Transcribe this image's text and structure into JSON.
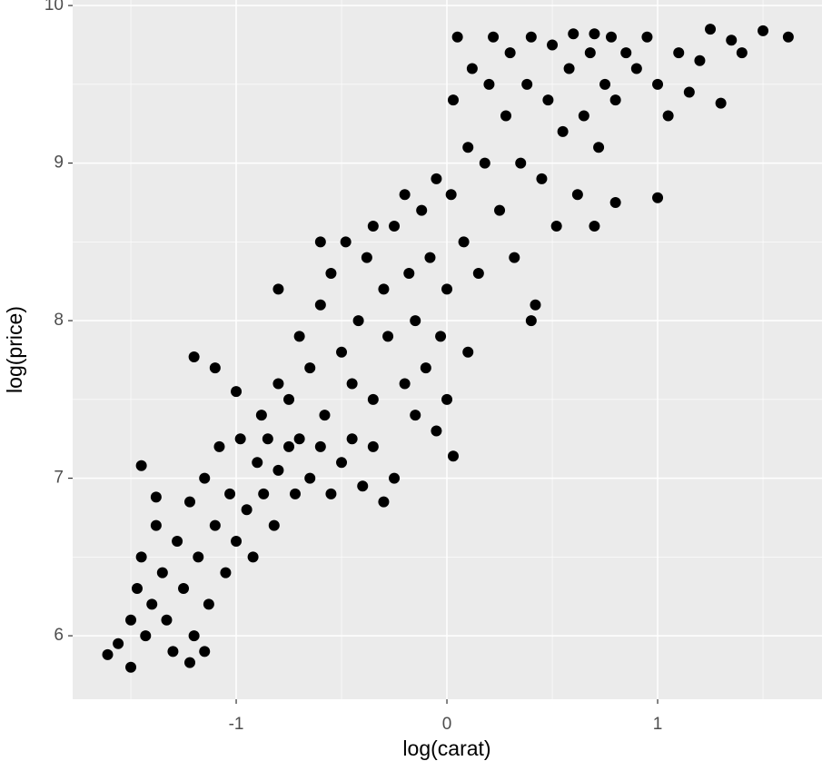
{
  "chart_data": {
    "type": "scatter",
    "x_label": "log(carat)",
    "y_label": "log(price)",
    "x": [
      -1.61,
      -1.56,
      -1.5,
      -1.5,
      -1.47,
      -1.45,
      -1.43,
      -1.4,
      -1.38,
      -1.35,
      -1.33,
      -1.3,
      -1.28,
      -1.25,
      -1.22,
      -1.2,
      -1.18,
      -1.15,
      -1.13,
      -1.1,
      -1.08,
      -1.05,
      -1.03,
      -1.0,
      -0.98,
      -0.95,
      -0.92,
      -0.9,
      -0.87,
      -0.85,
      -0.82,
      -0.8,
      -0.75,
      -0.72,
      -0.7,
      -0.65,
      -0.6,
      -0.55,
      -0.5,
      -0.45,
      -0.4,
      -0.35,
      -0.3,
      -0.25,
      -1.45,
      -1.38,
      -1.22,
      -1.15,
      -0.88,
      -0.8,
      -0.75,
      -0.7,
      -0.65,
      -0.6,
      -0.58,
      -0.55,
      -0.5,
      -0.48,
      -0.45,
      -0.42,
      -0.38,
      -0.35,
      -0.3,
      -0.28,
      -0.25,
      -0.2,
      -0.18,
      -0.15,
      -0.12,
      -0.1,
      -0.08,
      -0.05,
      -0.03,
      -1.2,
      -1.1,
      -1.0,
      -0.8,
      -0.6,
      -0.35,
      -0.2,
      -0.15,
      -0.05,
      0.0,
      0.0,
      0.02,
      0.03,
      0.05,
      0.08,
      0.1,
      0.12,
      0.15,
      0.18,
      0.2,
      0.22,
      0.25,
      0.28,
      0.3,
      0.32,
      0.35,
      0.38,
      0.4,
      0.42,
      0.45,
      0.48,
      0.5,
      0.52,
      0.55,
      0.58,
      0.6,
      0.62,
      0.65,
      0.68,
      0.7,
      0.72,
      0.75,
      0.78,
      0.8,
      0.85,
      0.9,
      0.95,
      1.0,
      1.05,
      1.1,
      1.15,
      1.2,
      1.25,
      1.3,
      1.35,
      1.4,
      1.5,
      1.62,
      1.0,
      0.8,
      0.7,
      0.4,
      0.03,
      0.1
    ],
    "values": [
      5.88,
      5.95,
      5.8,
      6.1,
      6.3,
      6.5,
      6.0,
      6.2,
      6.7,
      6.4,
      6.1,
      5.9,
      6.6,
      6.3,
      6.85,
      6.0,
      6.5,
      7.0,
      6.2,
      6.7,
      7.2,
      6.4,
      6.9,
      6.6,
      7.25,
      6.8,
      6.5,
      7.1,
      6.9,
      7.25,
      6.7,
      7.05,
      7.2,
      6.9,
      7.25,
      7.0,
      7.2,
      6.9,
      7.1,
      7.25,
      6.95,
      7.2,
      6.85,
      7.0,
      7.08,
      6.88,
      5.83,
      5.9,
      7.4,
      7.6,
      7.5,
      7.9,
      7.7,
      8.1,
      7.4,
      8.3,
      7.8,
      8.5,
      7.6,
      8.0,
      8.4,
      7.5,
      8.2,
      7.9,
      8.6,
      7.6,
      8.3,
      8.0,
      8.7,
      7.7,
      8.4,
      8.9,
      7.9,
      7.77,
      7.7,
      7.55,
      8.2,
      8.5,
      8.6,
      8.8,
      7.4,
      7.3,
      7.5,
      8.2,
      8.8,
      9.4,
      9.8,
      8.5,
      9.1,
      9.6,
      8.3,
      9.0,
      9.5,
      9.8,
      8.7,
      9.3,
      9.7,
      8.4,
      9.0,
      9.5,
      9.8,
      8.1,
      8.9,
      9.4,
      9.75,
      8.6,
      9.2,
      9.6,
      9.82,
      8.8,
      9.3,
      9.7,
      9.82,
      9.1,
      9.5,
      9.8,
      9.4,
      9.7,
      9.6,
      9.8,
      9.5,
      9.3,
      9.7,
      9.45,
      9.65,
      9.85,
      9.38,
      9.78,
      9.7,
      9.84,
      9.8,
      8.78,
      8.75,
      8.6,
      8.0,
      7.14,
      7.8
    ],
    "color": "#000000",
    "xlim": [
      -1.776,
      1.78
    ],
    "ylim": [
      5.597,
      10.035
    ],
    "xticks": [
      -1,
      0,
      1
    ],
    "yticks": [
      6,
      7,
      8,
      9,
      10
    ],
    "x_minor_grid": [
      -1.5,
      -0.5,
      0.5,
      1.5
    ],
    "y_minor_grid": [
      6.5,
      7.5,
      8.5,
      9.5
    ],
    "grid": true
  }
}
